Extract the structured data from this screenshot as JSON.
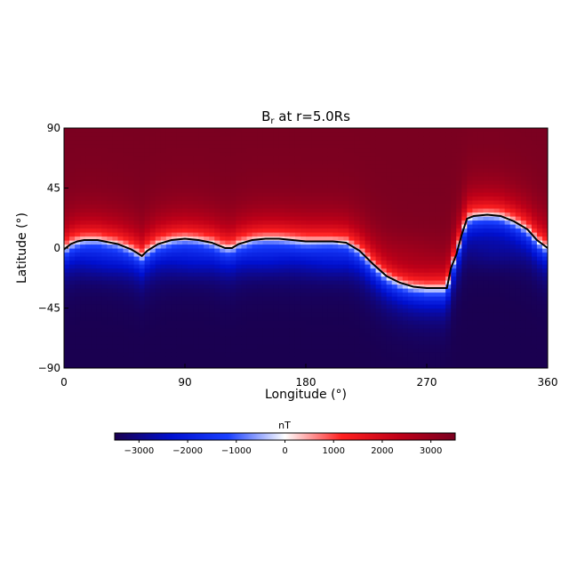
{
  "chart_data": {
    "type": "heatmap",
    "title": "B",
    "title_subscript": "r",
    "title_suffix": " at r=5.0Rs",
    "xlabel": "Longitude (°)",
    "ylabel": "Latitude (°)",
    "xlim": [
      0,
      360
    ],
    "ylim": [
      -90,
      90
    ],
    "xticks": [
      {
        "value": 0,
        "label": "0"
      },
      {
        "value": 90,
        "label": "90"
      },
      {
        "value": 180,
        "label": "180"
      },
      {
        "value": 270,
        "label": "270"
      },
      {
        "value": 360,
        "label": "360"
      }
    ],
    "yticks": [
      {
        "value": 90,
        "label": "90"
      },
      {
        "value": 45,
        "label": "45"
      },
      {
        "value": 0,
        "label": "0"
      },
      {
        "value": -45,
        "label": "−45"
      },
      {
        "value": -90,
        "label": "−90"
      }
    ],
    "colorbar": {
      "label": "nT",
      "range": [
        -3500,
        3500
      ],
      "colormap": [
        "#1a0050",
        "#0010d0",
        "#1a40ff",
        "#ffffff",
        "#ff2020",
        "#c00018",
        "#7a0020"
      ],
      "ticks": [
        {
          "value": -3000,
          "label": "−3000"
        },
        {
          "value": -2000,
          "label": "−2000"
        },
        {
          "value": -1000,
          "label": "−1000"
        },
        {
          "value": 0,
          "label": "0"
        },
        {
          "value": 1000,
          "label": "1000"
        },
        {
          "value": 2000,
          "label": "2000"
        },
        {
          "value": 3000,
          "label": "3000"
        }
      ]
    },
    "field_extremes": {
      "north_max": 3500,
      "south_min": -3500
    },
    "polarity_inversion_line": {
      "color": "#000000",
      "points": [
        [
          0,
          -1
        ],
        [
          5,
          3
        ],
        [
          10,
          5
        ],
        [
          15,
          6
        ],
        [
          20,
          6
        ],
        [
          25,
          6
        ],
        [
          30,
          5
        ],
        [
          40,
          3
        ],
        [
          50,
          -1
        ],
        [
          55,
          -4
        ],
        [
          58,
          -6
        ],
        [
          62,
          -2
        ],
        [
          70,
          3
        ],
        [
          80,
          6
        ],
        [
          90,
          7
        ],
        [
          100,
          6
        ],
        [
          110,
          4
        ],
        [
          120,
          0
        ],
        [
          125,
          0
        ],
        [
          130,
          3
        ],
        [
          140,
          6
        ],
        [
          150,
          7
        ],
        [
          160,
          7
        ],
        [
          170,
          6
        ],
        [
          180,
          5
        ],
        [
          190,
          5
        ],
        [
          200,
          5
        ],
        [
          210,
          4
        ],
        [
          220,
          -2
        ],
        [
          230,
          -12
        ],
        [
          240,
          -21
        ],
        [
          250,
          -26
        ],
        [
          260,
          -29
        ],
        [
          270,
          -30
        ],
        [
          285,
          -30
        ],
        [
          288,
          -15
        ],
        [
          292,
          -5
        ],
        [
          296,
          10
        ],
        [
          300,
          22
        ],
        [
          305,
          24
        ],
        [
          315,
          25
        ],
        [
          325,
          24
        ],
        [
          335,
          20
        ],
        [
          345,
          14
        ],
        [
          352,
          6
        ],
        [
          360,
          0
        ]
      ]
    },
    "regions": [
      {
        "polarity": "negative",
        "center": [
          30,
          -5
        ],
        "depth": -1500
      },
      {
        "polarity": "negative",
        "center": [
          95,
          -5
        ],
        "depth": -1500
      },
      {
        "polarity": "negative",
        "center": [
          150,
          -3
        ],
        "depth": -1300
      },
      {
        "polarity": "negative",
        "center": [
          200,
          -5
        ],
        "depth": -1500
      },
      {
        "polarity": "negative",
        "center": [
          320,
          0
        ],
        "depth": -2300
      },
      {
        "polarity": "positive",
        "center": [
          255,
          -5
        ],
        "depth": 2600
      }
    ]
  }
}
